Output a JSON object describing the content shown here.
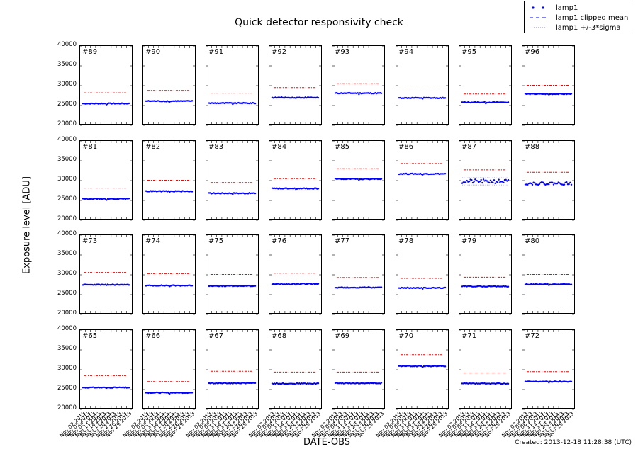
{
  "chart_data": {
    "type": "scatter",
    "title": "Quick detector responsivity check",
    "xlabel": "DATE-OBS",
    "ylabel": "Exposure level [ADU]",
    "ylim": [
      20000,
      40000
    ],
    "yticks": [
      20000,
      25000,
      30000,
      35000,
      40000
    ],
    "xtick_labels": [
      "Nov 02 2013",
      "Nov 05 2013",
      "Nov 08 2013",
      "Nov 11 2013",
      "Nov 14 2013",
      "Nov 17 2013",
      "Nov 20 2013",
      "Nov 23 2013",
      "Nov 26 2013",
      "Nov 29 2013"
    ],
    "legend": {
      "position": "upper right",
      "entries": [
        {
          "label": "lamp1",
          "style": "blue dots",
          "color": "#0000ff"
        },
        {
          "label": "lamp1 clipped mean",
          "style": "dashed",
          "color": "#0000ff"
        },
        {
          "label": "lamp1 +/-3*sigma",
          "style": "dotted",
          "color": "#0000ff"
        }
      ],
      "threshold_line": {
        "style": "red dash-dot",
        "color": "#ff0000"
      }
    },
    "grid": false,
    "panels": [
      {
        "label": "#89",
        "lamp1": 25500,
        "threshold": 28200,
        "scatter": 100
      },
      {
        "label": "#90",
        "lamp1": 26100,
        "threshold": 28800,
        "scatter": 100
      },
      {
        "label": "#91",
        "lamp1": 25600,
        "threshold": 28100,
        "scatter": 100
      },
      {
        "label": "#92",
        "lamp1": 27000,
        "threshold": 29500,
        "scatter": 100
      },
      {
        "label": "#93",
        "lamp1": 28100,
        "threshold": 30500,
        "scatter": 100
      },
      {
        "label": "#94",
        "lamp1": 26900,
        "threshold": 29200,
        "scatter": 100
      },
      {
        "label": "#95",
        "lamp1": 25800,
        "threshold": 27900,
        "scatter": 100
      },
      {
        "label": "#96",
        "lamp1": 27900,
        "threshold": 30100,
        "scatter": 100
      },
      {
        "label": "#81",
        "lamp1": 25400,
        "threshold": 28100,
        "scatter": 100
      },
      {
        "label": "#82",
        "lamp1": 27300,
        "threshold": 30100,
        "scatter": 100
      },
      {
        "label": "#83",
        "lamp1": 26800,
        "threshold": 29500,
        "scatter": 100
      },
      {
        "label": "#84",
        "lamp1": 28000,
        "threshold": 30500,
        "scatter": 100
      },
      {
        "label": "#85",
        "lamp1": 30400,
        "threshold": 33000,
        "scatter": 100
      },
      {
        "label": "#86",
        "lamp1": 31700,
        "threshold": 34300,
        "scatter": 100
      },
      {
        "label": "#87",
        "lamp1": 29800,
        "threshold": 32700,
        "scatter": 500
      },
      {
        "label": "#88",
        "lamp1": 29300,
        "threshold": 32100,
        "scatter": 350
      },
      {
        "label": "#73",
        "lamp1": 27500,
        "threshold": 30600,
        "scatter": 100
      },
      {
        "label": "#74",
        "lamp1": 27300,
        "threshold": 30300,
        "scatter": 100
      },
      {
        "label": "#75",
        "lamp1": 27200,
        "threshold": 30100,
        "scatter": 100
      },
      {
        "label": "#76",
        "lamp1": 27700,
        "threshold": 30400,
        "scatter": 150
      },
      {
        "label": "#77",
        "lamp1": 26800,
        "threshold": 29300,
        "scatter": 100
      },
      {
        "label": "#78",
        "lamp1": 26700,
        "threshold": 29100,
        "scatter": 100
      },
      {
        "label": "#79",
        "lamp1": 27100,
        "threshold": 29400,
        "scatter": 100
      },
      {
        "label": "#80",
        "lamp1": 27600,
        "threshold": 30100,
        "scatter": 100
      },
      {
        "label": "#65",
        "lamp1": 25500,
        "threshold": 28500,
        "scatter": 100
      },
      {
        "label": "#66",
        "lamp1": 24200,
        "threshold": 27000,
        "scatter": 100
      },
      {
        "label": "#67",
        "lamp1": 26600,
        "threshold": 29600,
        "scatter": 100
      },
      {
        "label": "#68",
        "lamp1": 26500,
        "threshold": 29400,
        "scatter": 100
      },
      {
        "label": "#69",
        "lamp1": 26600,
        "threshold": 29400,
        "scatter": 100
      },
      {
        "label": "#70",
        "lamp1": 30900,
        "threshold": 33800,
        "scatter": 100
      },
      {
        "label": "#71",
        "lamp1": 26500,
        "threshold": 29200,
        "scatter": 100
      },
      {
        "label": "#72",
        "lamp1": 27000,
        "threshold": 29500,
        "scatter": 100
      }
    ]
  },
  "footer": {
    "created": "Created: 2013-12-18 11:28:38 (UTC)"
  },
  "colors": {
    "points": "#0000ff",
    "threshold": "#ff0000",
    "sigma": "#8080ff"
  }
}
